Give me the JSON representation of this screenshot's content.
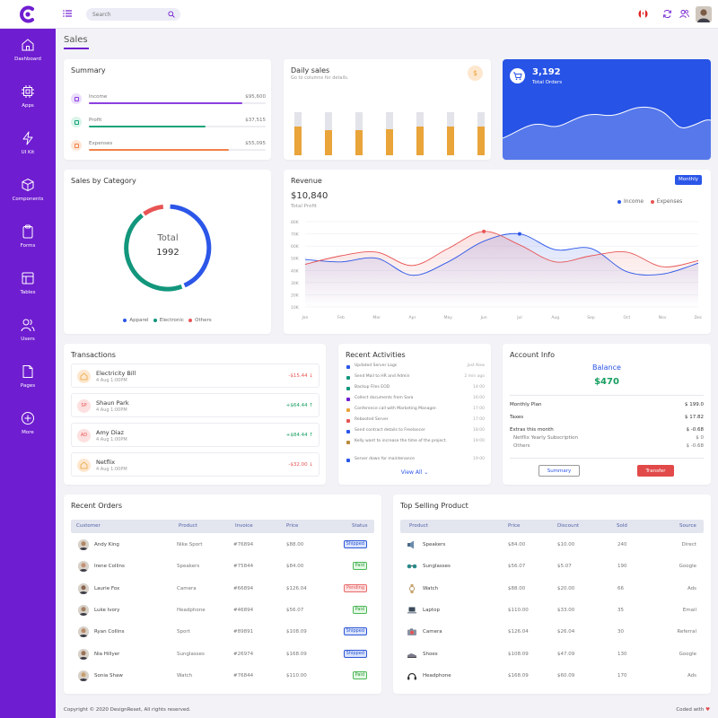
{
  "colors": {
    "brand": "#6f1dd0",
    "income": "#2b56e8",
    "expenses": "#e85454",
    "apparel": "#2b56e8",
    "electronic": "#12967c",
    "others": "#e85454",
    "orange": "#e9a43a",
    "green": "#169d60"
  },
  "header": {
    "search_placeholder": "Search",
    "icons": [
      "brand-logo-icon",
      "menu-icon",
      "search-icon",
      "canada-flag-icon",
      "refresh-icon",
      "users-icon",
      "user-avatar"
    ]
  },
  "sidebar": {
    "items": [
      {
        "label": "Dashboard",
        "icon": "home-icon",
        "active": true
      },
      {
        "label": "Apps",
        "icon": "chip-icon"
      },
      {
        "label": "UI Kit",
        "icon": "bolt-icon"
      },
      {
        "label": "Components",
        "icon": "cube-icon"
      },
      {
        "label": "Forms",
        "icon": "clipboard-icon"
      },
      {
        "label": "Tables",
        "icon": "table-icon"
      },
      {
        "label": "Users",
        "icon": "users-icon"
      },
      {
        "label": "Pages",
        "icon": "file-icon"
      },
      {
        "label": "More",
        "icon": "plus-circle-icon"
      }
    ]
  },
  "page": {
    "title": "Sales"
  },
  "summary": {
    "title": "Summary",
    "items": [
      {
        "label": "Income",
        "value": "$95,600",
        "progress": 0.87,
        "color": "#8b3fe0",
        "bg": "#eadcfb",
        "icon": "wallet-icon"
      },
      {
        "label": "Profit",
        "value": "$37,515",
        "progress": 0.66,
        "color": "#17a37a",
        "bg": "#d9f4e9",
        "icon": "tag-icon"
      },
      {
        "label": "Expenses",
        "value": "$55,095",
        "progress": 0.79,
        "color": "#f0824a",
        "bg": "#fde6d6",
        "icon": "card-icon"
      }
    ]
  },
  "daily_sales": {
    "title": "Daily sales",
    "subtitle": "Go to columns for details.",
    "icon": "dollar-icon",
    "bars": [
      0.67,
      0.58,
      0.58,
      0.6,
      0.67,
      0.67,
      0.67,
      0.33
    ]
  },
  "total_orders": {
    "value": "3,192",
    "label": "Total Orders",
    "icon": "cart-icon"
  },
  "sales_by_category": {
    "title": "Sales by Category",
    "center_label": "Total",
    "center_value": "1992",
    "legend": [
      "Apparel",
      "Electronic",
      "Others"
    ]
  },
  "revenue": {
    "title": "Revenue",
    "period": "Monthly",
    "amount": "$10,840",
    "amount_label": "Total Profit",
    "legend": [
      "Income",
      "Expenses"
    ]
  },
  "chart_data": {
    "type": "line",
    "title": "Revenue",
    "x": [
      "Jan",
      "Feb",
      "Mar",
      "Apr",
      "May",
      "Jun",
      "Jul",
      "Aug",
      "Sep",
      "Oct",
      "Nov",
      "Dec"
    ],
    "y_ticks": [
      "80K",
      "70K",
      "60K",
      "50K",
      "40K",
      "30K",
      "20K",
      "10K"
    ],
    "series": [
      {
        "name": "Income",
        "values": [
          49,
          47,
          50,
          36,
          47,
          64,
          70,
          57,
          58,
          39,
          37,
          46
        ]
      },
      {
        "name": "Expenses",
        "values": [
          45,
          52,
          55,
          44,
          58,
          72,
          61,
          47,
          52,
          55,
          43,
          48
        ]
      }
    ],
    "ylim": [
      10,
      80
    ],
    "grid": true,
    "legend": "top-right"
  },
  "transactions": {
    "title": "Transactions",
    "rows": [
      {
        "initials": "",
        "icon": "home-icon",
        "name": "Electricity Bill",
        "date": "4 Aug 1:00PM",
        "amount": "-$15.44",
        "type": "debit",
        "avbg": "#fde7cf",
        "avfg": "#e9a43a"
      },
      {
        "initials": "SP",
        "name": "Shaun Park",
        "date": "4 Aug 1:00PM",
        "amount": "+$64.44",
        "type": "credit",
        "avbg": "#fde0e0",
        "avfg": "#e85454"
      },
      {
        "initials": "AD",
        "name": "Amy Diaz",
        "date": "4 Aug 1:00PM",
        "amount": "+$84.44",
        "type": "credit",
        "avbg": "#fde0e0",
        "avfg": "#e85454"
      },
      {
        "initials": "",
        "icon": "home-icon",
        "name": "Netflix",
        "date": "4 Aug 1:00PM",
        "amount": "-$32.00",
        "type": "debit",
        "avbg": "#fde7cf",
        "avfg": "#e9a43a"
      }
    ]
  },
  "activities": {
    "title": "Recent Activities",
    "view_all": "View All",
    "items": [
      {
        "text": "Updated Server Logs",
        "time": "Just Now",
        "color": "#2b56e8"
      },
      {
        "text": "Send Mail to HR and Admin",
        "time": "2 min ago",
        "color": "#12967c"
      },
      {
        "text": "Backup Files EOD",
        "time": "14:00",
        "color": "#12967c"
      },
      {
        "text": "Collect documents from Sara",
        "time": "16:00",
        "color": "#6f1dd0"
      },
      {
        "text": "Conference call with Marketing Manager.",
        "time": "17:00",
        "color": "#e9a43a"
      },
      {
        "text": "Rebooted Server",
        "time": "17:00",
        "color": "#e85454"
      },
      {
        "text": "Send contract details to Freelancer",
        "time": "18:00",
        "color": "#2b56e8"
      },
      {
        "text": "Kelly want to increase the time of the project.",
        "time": "19:00",
        "color": "#b88a3a"
      },
      {
        "text": "Server down for maintenance",
        "time": "19:00",
        "color": "#2b56e8"
      }
    ]
  },
  "account": {
    "title": "Account Info",
    "balance_label": "Balance",
    "balance": "$470",
    "rows": [
      {
        "label": "Monthly Plan",
        "value": "$ 199.0"
      },
      {
        "label": "Taxes",
        "value": "$ 17.82"
      },
      {
        "label": "Extras this month",
        "value": "$ -0.68"
      },
      {
        "label": "Netflix Yearly Subscription",
        "value": "$ 0"
      },
      {
        "label": "Others",
        "value": "$ -0.68"
      }
    ],
    "summary_btn": "Summary",
    "transfer_btn": "Transfer"
  },
  "recent_orders": {
    "title": "Recent Orders",
    "columns": [
      "Customer",
      "Product",
      "Invoice",
      "Price",
      "Status"
    ],
    "rows": [
      {
        "customer": "Andy King",
        "product": "Nike Sport",
        "invoice": "#76894",
        "price": "$88.00",
        "status": "Shipped",
        "st": "shipped"
      },
      {
        "customer": "Irene Collins",
        "product": "Speakers",
        "invoice": "#75844",
        "price": "$84.00",
        "status": "Paid",
        "st": "paid"
      },
      {
        "customer": "Laurie Fox",
        "product": "Camera",
        "invoice": "#66894",
        "price": "$126.04",
        "status": "Pending",
        "st": "pending"
      },
      {
        "customer": "Luke Ivory",
        "product": "Headphone",
        "invoice": "#46894",
        "price": "$56.07",
        "status": "Paid",
        "st": "paid"
      },
      {
        "customer": "Ryan Collins",
        "product": "Sport",
        "invoice": "#89891",
        "price": "$108.09",
        "status": "Shipped",
        "st": "shipped"
      },
      {
        "customer": "Nia Hillyer",
        "product": "Sunglasses",
        "invoice": "#26974",
        "price": "$168.09",
        "status": "Shipped",
        "st": "shipped"
      },
      {
        "customer": "Sonia Shaw",
        "product": "Watch",
        "invoice": "#76844",
        "price": "$110.00",
        "status": "Paid",
        "st": "paid"
      }
    ]
  },
  "top_selling": {
    "title": "Top Selling Product",
    "columns": [
      "Product",
      "Price",
      "Discount",
      "Sold",
      "Source"
    ],
    "rows": [
      {
        "product": "Speakers",
        "icon": "speaker-icon",
        "price": "$84.00",
        "discount": "$10.00",
        "sold": "240",
        "source": "Direct"
      },
      {
        "product": "Sunglasses",
        "icon": "sunglasses-icon",
        "price": "$56.07",
        "discount": "$5.07",
        "sold": "190",
        "source": "Google"
      },
      {
        "product": "Watch",
        "icon": "watch-icon",
        "price": "$88.00",
        "discount": "$20.00",
        "sold": "66",
        "source": "Ads"
      },
      {
        "product": "Laptop",
        "icon": "laptop-icon",
        "price": "$110.00",
        "discount": "$33.00",
        "sold": "35",
        "source": "Email"
      },
      {
        "product": "Camera",
        "icon": "camera-icon",
        "price": "$126.04",
        "discount": "$26.04",
        "sold": "30",
        "source": "Referral"
      },
      {
        "product": "Shoes",
        "icon": "shoes-icon",
        "price": "$108.09",
        "discount": "$47.09",
        "sold": "130",
        "source": "Google"
      },
      {
        "product": "Headphone",
        "icon": "headphone-icon",
        "price": "$168.09",
        "discount": "$60.09",
        "sold": "170",
        "source": "Ads"
      }
    ]
  },
  "footer": {
    "copyright": "Copyright © 2020 DesignReset, All rights reserved.",
    "coded": "Coded with"
  }
}
